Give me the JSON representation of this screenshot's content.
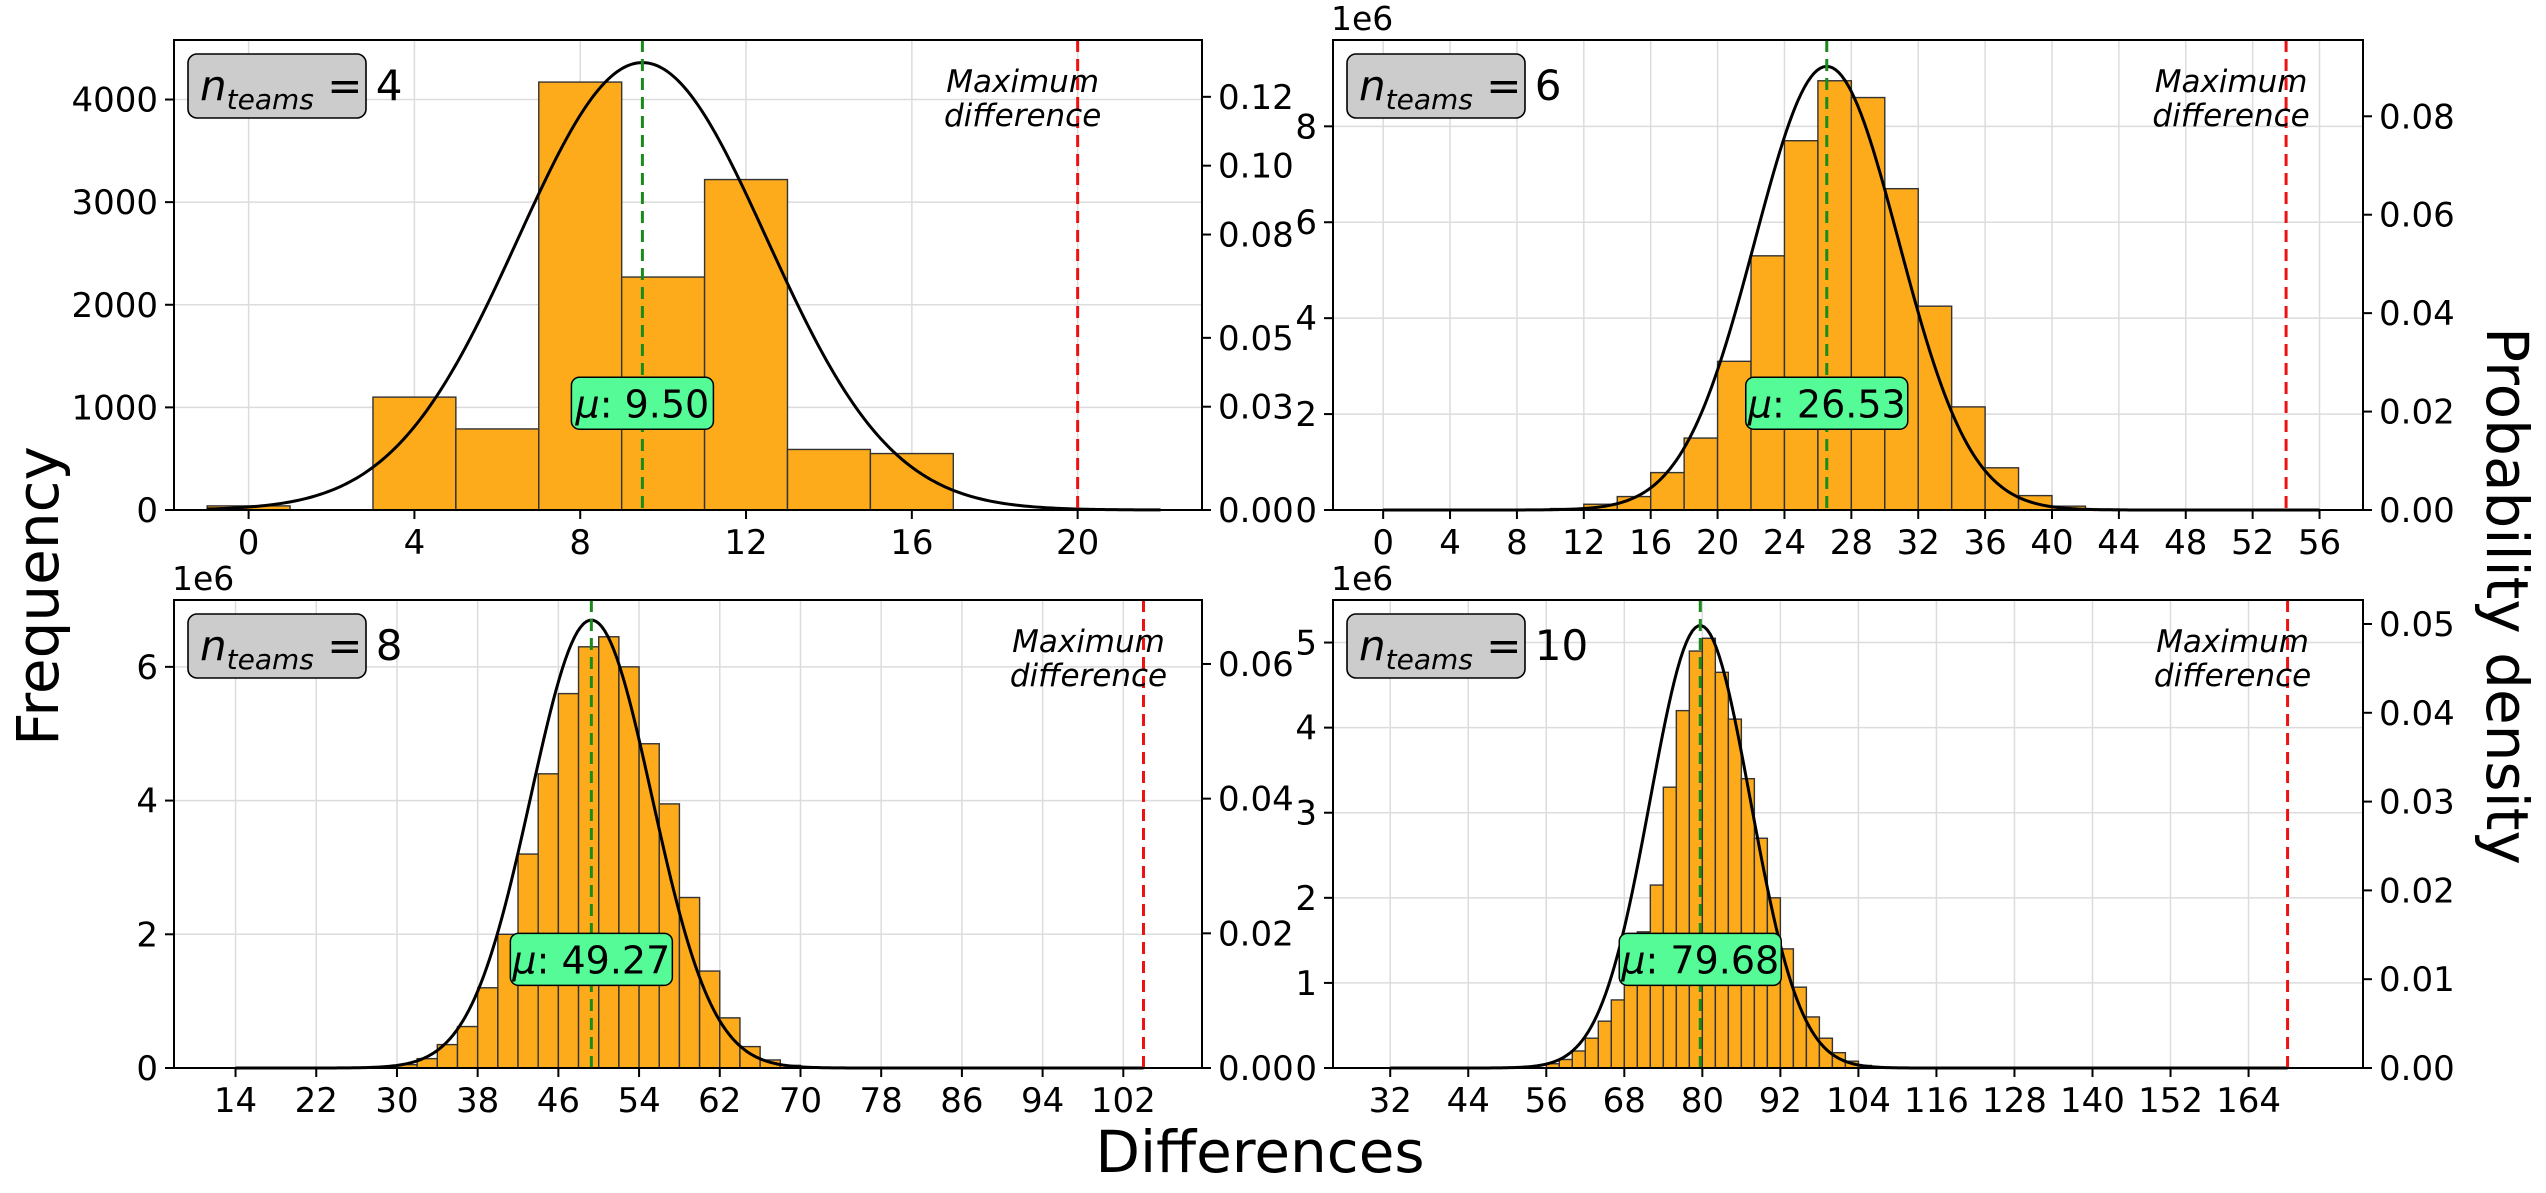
{
  "figure": {
    "xlabel": "Differences",
    "ylabel_left": "Frequency",
    "ylabel_right": "Probability density"
  },
  "colors": {
    "bar": "#fdab1a",
    "bar_edge": "#333333",
    "mean_line": "#1a8a1a",
    "max_line": "#ee1111",
    "curve": "#000000",
    "mu_box": "#55fb96",
    "team_box": "#cccccc"
  },
  "chart_data": [
    {
      "type": "bar",
      "teams_label": {
        "base": "n",
        "sub": "teams",
        "rest": " = 4"
      },
      "mu_label": "μ: 9.50",
      "max_label": [
        "Maximum",
        "difference"
      ],
      "mean": 9.5,
      "max_difference": 20,
      "xlim": [
        -1.8,
        23
      ],
      "xticks": [
        0,
        4,
        8,
        12,
        16,
        20
      ],
      "ylim": [
        0,
        4580
      ],
      "yticks": [
        0,
        1000,
        2000,
        3000,
        4000
      ],
      "offset_label": "",
      "y2lim": [
        0,
        0.1365
      ],
      "y2ticks": [
        0.0,
        0.03,
        0.05,
        0.08,
        0.1,
        0.12
      ],
      "y2tick_labels": [
        "0.00",
        "0.03",
        "0.05",
        "0.08",
        "0.10",
        "0.12"
      ],
      "bins": [
        {
          "x0": -1,
          "x1": 1,
          "value": 40
        },
        {
          "x0": 3,
          "x1": 5,
          "value": 1100
        },
        {
          "x0": 5,
          "x1": 7,
          "value": 790
        },
        {
          "x0": 7,
          "x1": 9,
          "value": 4170
        },
        {
          "x0": 9,
          "x1": 11,
          "value": 2270
        },
        {
          "x0": 11,
          "x1": 13,
          "value": 3220
        },
        {
          "x0": 13,
          "x1": 15,
          "value": 590
        },
        {
          "x0": 15,
          "x1": 17,
          "value": 550
        }
      ],
      "curve": {
        "mean": 9.5,
        "sd": 3.0,
        "peak": 4360,
        "from": -1,
        "to": 22
      }
    },
    {
      "type": "bar",
      "teams_label": {
        "base": "n",
        "sub": "teams",
        "rest": " = 6"
      },
      "mu_label": "μ: 26.53",
      "max_label": [
        "Maximum",
        "difference"
      ],
      "mean": 26.53,
      "max_difference": 54,
      "xlim": [
        -3,
        58.6
      ],
      "xticks": [
        0,
        4,
        8,
        12,
        16,
        20,
        24,
        28,
        32,
        36,
        40,
        44,
        48,
        52,
        56
      ],
      "ylim": [
        0,
        9.8
      ],
      "yticks": [
        0,
        2,
        4,
        6,
        8
      ],
      "offset_label": "1e6",
      "y2lim": [
        0,
        0.0955
      ],
      "y2ticks": [
        0.0,
        0.02,
        0.04,
        0.06,
        0.08
      ],
      "y2tick_labels": [
        "0.00",
        "0.02",
        "0.04",
        "0.06",
        "0.08"
      ],
      "bins": [
        {
          "x0": 0,
          "x1": 2,
          "value": 0.01
        },
        {
          "x0": 2,
          "x1": 4,
          "value": 0.01
        },
        {
          "x0": 4,
          "x1": 6,
          "value": 0.01
        },
        {
          "x0": 6,
          "x1": 8,
          "value": 0.01
        },
        {
          "x0": 8,
          "x1": 10,
          "value": 0.01
        },
        {
          "x0": 10,
          "x1": 12,
          "value": 0.03
        },
        {
          "x0": 12,
          "x1": 14,
          "value": 0.12
        },
        {
          "x0": 14,
          "x1": 16,
          "value": 0.28
        },
        {
          "x0": 16,
          "x1": 18,
          "value": 0.78
        },
        {
          "x0": 18,
          "x1": 20,
          "value": 1.5
        },
        {
          "x0": 20,
          "x1": 22,
          "value": 3.1
        },
        {
          "x0": 22,
          "x1": 24,
          "value": 5.3
        },
        {
          "x0": 24,
          "x1": 26,
          "value": 7.7
        },
        {
          "x0": 26,
          "x1": 28,
          "value": 8.95
        },
        {
          "x0": 28,
          "x1": 30,
          "value": 8.6
        },
        {
          "x0": 30,
          "x1": 32,
          "value": 6.7
        },
        {
          "x0": 32,
          "x1": 34,
          "value": 4.25
        },
        {
          "x0": 34,
          "x1": 36,
          "value": 2.15
        },
        {
          "x0": 36,
          "x1": 38,
          "value": 0.88
        },
        {
          "x0": 38,
          "x1": 40,
          "value": 0.3
        },
        {
          "x0": 40,
          "x1": 42,
          "value": 0.08
        },
        {
          "x0": 42,
          "x1": 44,
          "value": 0.02
        }
      ],
      "curve": {
        "mean": 26.53,
        "sd": 4.3,
        "peak": 9.25,
        "from": 0,
        "to": 56
      }
    },
    {
      "type": "bar",
      "teams_label": {
        "base": "n",
        "sub": "teams",
        "rest": " = 8"
      },
      "mu_label": "μ: 49.27",
      "max_label": [
        "Maximum",
        "difference"
      ],
      "mean": 49.27,
      "max_difference": 104,
      "xlim": [
        7.9,
        109.8
      ],
      "xticks": [
        14,
        22,
        30,
        38,
        46,
        54,
        62,
        70,
        78,
        86,
        94,
        102
      ],
      "ylim": [
        0,
        7.0
      ],
      "yticks": [
        0,
        2,
        4,
        6
      ],
      "offset_label": "1e6",
      "y2lim": [
        0,
        0.0695
      ],
      "y2ticks": [
        0.0,
        0.02,
        0.04,
        0.06
      ],
      "y2tick_labels": [
        "0.00",
        "0.02",
        "0.04",
        "0.06"
      ],
      "bins": [
        {
          "x0": 30,
          "x1": 32,
          "value": 0.05
        },
        {
          "x0": 32,
          "x1": 34,
          "value": 0.14
        },
        {
          "x0": 34,
          "x1": 36,
          "value": 0.35
        },
        {
          "x0": 36,
          "x1": 38,
          "value": 0.62
        },
        {
          "x0": 38,
          "x1": 40,
          "value": 1.2
        },
        {
          "x0": 40,
          "x1": 42,
          "value": 2.0
        },
        {
          "x0": 42,
          "x1": 44,
          "value": 3.2
        },
        {
          "x0": 44,
          "x1": 46,
          "value": 4.4
        },
        {
          "x0": 46,
          "x1": 48,
          "value": 5.6
        },
        {
          "x0": 48,
          "x1": 50,
          "value": 6.3
        },
        {
          "x0": 50,
          "x1": 52,
          "value": 6.45
        },
        {
          "x0": 52,
          "x1": 54,
          "value": 6.0
        },
        {
          "x0": 54,
          "x1": 56,
          "value": 4.85
        },
        {
          "x0": 56,
          "x1": 58,
          "value": 3.95
        },
        {
          "x0": 58,
          "x1": 60,
          "value": 2.55
        },
        {
          "x0": 60,
          "x1": 62,
          "value": 1.45
        },
        {
          "x0": 62,
          "x1": 64,
          "value": 0.75
        },
        {
          "x0": 64,
          "x1": 66,
          "value": 0.32
        },
        {
          "x0": 66,
          "x1": 68,
          "value": 0.12
        },
        {
          "x0": 68,
          "x1": 70,
          "value": 0.04
        }
      ],
      "curve": {
        "mean": 49.27,
        "sd": 6.0,
        "peak": 6.7,
        "from": 14,
        "to": 104
      }
    },
    {
      "type": "bar",
      "teams_label": {
        "base": "n",
        "sub": "teams",
        "rest": " = 10"
      },
      "mu_label": "μ: 79.68",
      "max_label": [
        "Maximum",
        "difference"
      ],
      "mean": 79.68,
      "max_difference": 170,
      "xlim": [
        23.2,
        181.6
      ],
      "xticks": [
        32,
        44,
        56,
        68,
        80,
        92,
        104,
        116,
        128,
        140,
        152,
        164
      ],
      "xtick_labels": [
        "32",
        "44",
        "56",
        "68",
        "80",
        "92",
        "104",
        "116",
        "128",
        "140",
        "152",
        "164"
      ],
      "ylim": [
        0,
        5.5
      ],
      "yticks": [
        0,
        1,
        2,
        3,
        4,
        5
      ],
      "offset_label": "1e6",
      "y2lim": [
        0,
        0.0527
      ],
      "y2ticks": [
        0.0,
        0.01,
        0.02,
        0.03,
        0.04,
        0.05
      ],
      "y2tick_labels": [
        "0.00",
        "0.01",
        "0.02",
        "0.03",
        "0.04",
        "0.05"
      ],
      "bins": [
        {
          "x0": 56,
          "x1": 58,
          "value": 0.05
        },
        {
          "x0": 58,
          "x1": 60,
          "value": 0.1
        },
        {
          "x0": 60,
          "x1": 62,
          "value": 0.2
        },
        {
          "x0": 62,
          "x1": 64,
          "value": 0.35
        },
        {
          "x0": 64,
          "x1": 66,
          "value": 0.55
        },
        {
          "x0": 66,
          "x1": 68,
          "value": 0.8
        },
        {
          "x0": 68,
          "x1": 70,
          "value": 1.15
        },
        {
          "x0": 70,
          "x1": 72,
          "value": 1.6
        },
        {
          "x0": 72,
          "x1": 74,
          "value": 2.15
        },
        {
          "x0": 74,
          "x1": 76,
          "value": 3.3
        },
        {
          "x0": 76,
          "x1": 78,
          "value": 4.2
        },
        {
          "x0": 78,
          "x1": 80,
          "value": 4.9
        },
        {
          "x0": 80,
          "x1": 82,
          "value": 5.05
        },
        {
          "x0": 82,
          "x1": 84,
          "value": 4.65
        },
        {
          "x0": 84,
          "x1": 86,
          "value": 4.1
        },
        {
          "x0": 86,
          "x1": 88,
          "value": 3.4
        },
        {
          "x0": 88,
          "x1": 90,
          "value": 2.7
        },
        {
          "x0": 90,
          "x1": 92,
          "value": 2.0
        },
        {
          "x0": 92,
          "x1": 94,
          "value": 1.4
        },
        {
          "x0": 94,
          "x1": 96,
          "value": 0.95
        },
        {
          "x0": 96,
          "x1": 98,
          "value": 0.6
        },
        {
          "x0": 98,
          "x1": 100,
          "value": 0.35
        },
        {
          "x0": 100,
          "x1": 102,
          "value": 0.18
        },
        {
          "x0": 102,
          "x1": 104,
          "value": 0.08
        },
        {
          "x0": 104,
          "x1": 106,
          "value": 0.03
        }
      ],
      "curve": {
        "mean": 79.68,
        "sd": 7.7,
        "peak": 5.2,
        "from": 32,
        "to": 170
      }
    }
  ]
}
